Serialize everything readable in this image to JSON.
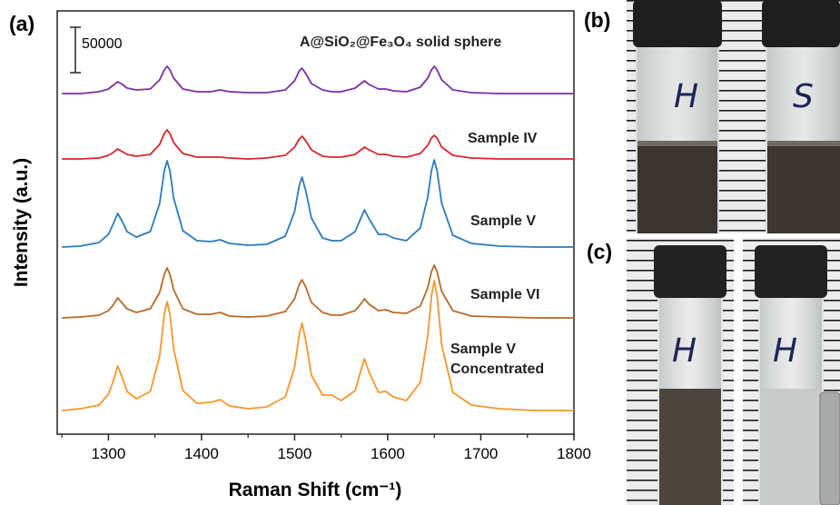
{
  "chart_data": {
    "type": "line",
    "panel": "(a)",
    "x_label": "Raman Shift (cm⁻¹)",
    "y_label": "Intensity (a.u.)",
    "scale_bar": 50000,
    "xlim": [
      1245,
      1800
    ],
    "ylim": [
      0,
      466000
    ],
    "xticks": [
      1300,
      1400,
      1500,
      1600,
      1700,
      1800
    ],
    "xminor_ticks": [
      1250,
      1350,
      1450,
      1550,
      1650,
      1750
    ],
    "x": [
      1250,
      1270,
      1290,
      1300,
      1305,
      1310,
      1315,
      1320,
      1330,
      1345,
      1355,
      1360,
      1363,
      1366,
      1370,
      1380,
      1395,
      1410,
      1420,
      1430,
      1450,
      1470,
      1490,
      1500,
      1505,
      1508,
      1512,
      1518,
      1530,
      1540,
      1550,
      1565,
      1570,
      1575,
      1580,
      1590,
      1598,
      1606,
      1620,
      1635,
      1643,
      1647,
      1650,
      1653,
      1658,
      1670,
      1690,
      1720,
      1760,
      1800
    ],
    "series": [
      {
        "name": "A@SiO₂@Fe₃O₄ solid sphere",
        "color": "#7d2fa0",
        "values": [
          375000,
          375000,
          377000,
          380000,
          384000,
          388000,
          385000,
          381000,
          379000,
          380000,
          390000,
          401000,
          405000,
          401000,
          392000,
          380000,
          377000,
          377000,
          379000,
          377000,
          376000,
          376000,
          379000,
          389000,
          400000,
          403000,
          397000,
          386000,
          379000,
          377000,
          377000,
          381000,
          385000,
          389000,
          385000,
          380000,
          380000,
          378000,
          377000,
          382000,
          392000,
          401000,
          405000,
          401000,
          390000,
          379000,
          376000,
          375000,
          375000,
          375000
        ]
      },
      {
        "name": "Sample IV",
        "color": "#d7262b",
        "values": [
          303000,
          303000,
          304000,
          307000,
          310000,
          314000,
          311000,
          308000,
          306000,
          308000,
          319000,
          331000,
          335000,
          331000,
          321000,
          309000,
          305000,
          305000,
          305000,
          304000,
          303000,
          304000,
          307000,
          316000,
          325000,
          328000,
          323000,
          313000,
          306000,
          305000,
          305000,
          308000,
          312000,
          316000,
          313000,
          308000,
          308000,
          306000,
          305000,
          309000,
          318000,
          326000,
          329000,
          326000,
          316000,
          307000,
          304000,
          303000,
          303000,
          303000
        ]
      },
      {
        "name": "Sample V",
        "color": "#2b7bb9",
        "values": [
          206000,
          207000,
          211000,
          220000,
          231000,
          243000,
          234000,
          223000,
          217000,
          223000,
          254000,
          290000,
          301000,
          290000,
          260000,
          224000,
          213000,
          212000,
          214000,
          210000,
          208000,
          209000,
          218000,
          245000,
          274000,
          283000,
          268000,
          238000,
          216000,
          213000,
          213000,
          223000,
          235000,
          247000,
          237000,
          220000,
          220000,
          216000,
          213000,
          227000,
          261000,
          290000,
          302000,
          290000,
          254000,
          219000,
          210000,
          207000,
          206000,
          206000
        ]
      },
      {
        "name": "Sample VI",
        "color": "#b86a2c",
        "values": [
          128000,
          129000,
          131000,
          136000,
          142000,
          150000,
          144000,
          138000,
          134000,
          138000,
          156000,
          176000,
          183000,
          176000,
          159000,
          138000,
          132000,
          132000,
          134000,
          130000,
          129000,
          130000,
          135000,
          149000,
          165000,
          170000,
          162000,
          145000,
          134000,
          131000,
          131000,
          136000,
          142000,
          149000,
          143000,
          136000,
          137000,
          134000,
          133000,
          141000,
          161000,
          179000,
          186000,
          179000,
          157000,
          136000,
          130000,
          129000,
          128000,
          128000
        ]
      },
      {
        "name": "Sample V Concentrated",
        "color": "#f7962c",
        "values": [
          26000,
          28000,
          32000,
          44000,
          58000,
          75000,
          62000,
          47000,
          39000,
          47000,
          86000,
          132000,
          146000,
          132000,
          94000,
          48000,
          34000,
          35000,
          38000,
          31000,
          28000,
          30000,
          41000,
          74000,
          110000,
          122000,
          103000,
          65000,
          43000,
          43000,
          37000,
          48000,
          66000,
          83000,
          68000,
          46000,
          47000,
          41000,
          37000,
          57000,
          108000,
          152000,
          169000,
          152000,
          98000,
          46000,
          32000,
          28000,
          26000,
          26000
        ]
      }
    ]
  },
  "photos": [
    {
      "panel": "(b)",
      "vial_labels": [
        "H",
        "S"
      ]
    },
    {
      "panel": "(c)",
      "vial_labels": [
        "H",
        "H"
      ]
    }
  ]
}
